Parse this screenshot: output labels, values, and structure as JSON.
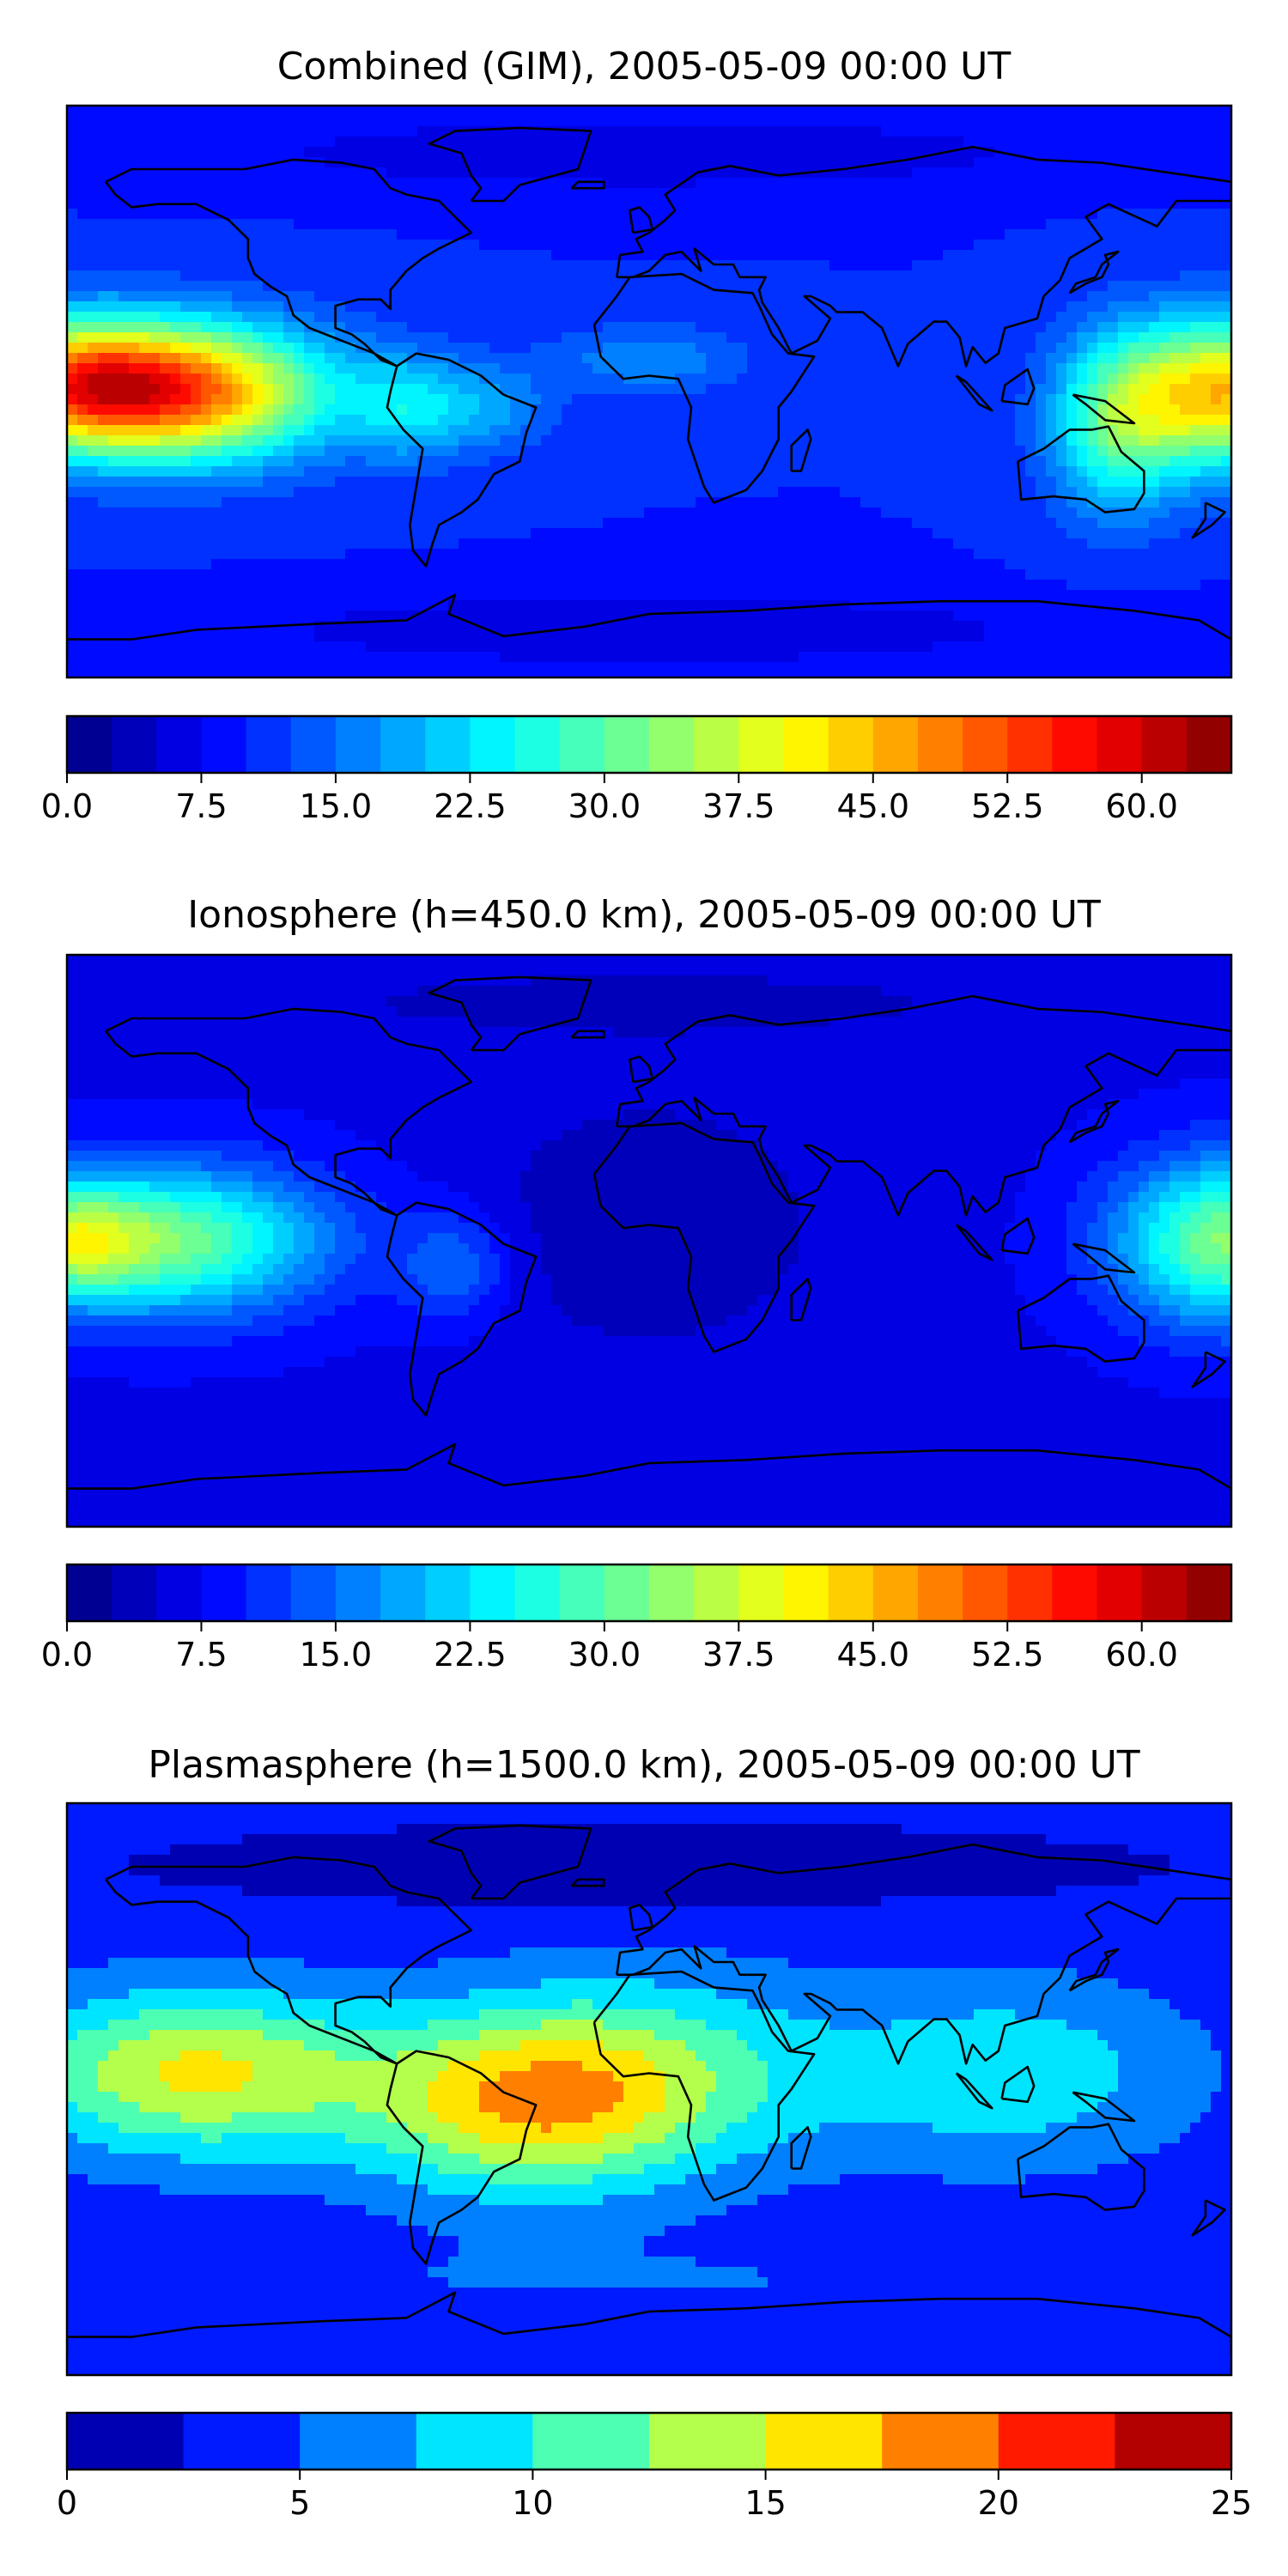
{
  "panels": [
    {
      "title": "Combined (GIM), 2005-05-09 00:00 UT",
      "colorbar": {
        "min": 0.0,
        "max": 65.0,
        "step": 2.5,
        "colormap": "jet",
        "ticks": [
          "0.0",
          "7.5",
          "15.0",
          "22.5",
          "30.0",
          "37.5",
          "45.0",
          "52.5",
          "60.0"
        ],
        "tick_values": [
          0,
          7.5,
          15,
          22.5,
          30,
          37.5,
          45,
          52.5,
          60
        ]
      },
      "field": {
        "base": 10,
        "blobs": [
          {
            "lon": -145,
            "lat": 0,
            "amp": 40,
            "slon": 32,
            "slat": 15
          },
          {
            "lon": -180,
            "lat": 3,
            "amp": 25,
            "slon": 22,
            "slat": 14
          },
          {
            "lon": 180,
            "lat": 0,
            "amp": 34,
            "slon": 22,
            "slat": 16
          },
          {
            "lon": 145,
            "lat": -10,
            "amp": 18,
            "slon": 15,
            "slat": 20
          },
          {
            "lon": -75,
            "lat": -5,
            "amp": 10,
            "slon": 12,
            "slat": 12
          },
          {
            "lon": -50,
            "lat": -5,
            "amp": 8,
            "slon": 14,
            "slat": 10
          },
          {
            "lon": 0,
            "lat": 10,
            "amp": 7,
            "slon": 22,
            "slat": 8
          },
          {
            "lon": 0,
            "lat": 75,
            "amp": -5,
            "slon": 90,
            "slat": 8
          },
          {
            "lon": 0,
            "lat": -75,
            "amp": -5,
            "slon": 90,
            "slat": 8
          }
        ]
      }
    },
    {
      "title": "Ionosphere  (h=450.0 km), 2005-05-09 00:00 UT",
      "colorbar": {
        "min": 0.0,
        "max": 65.0,
        "step": 2.5,
        "colormap": "jet",
        "ticks": [
          "0.0",
          "7.5",
          "15.0",
          "22.5",
          "30.0",
          "37.5",
          "45.0",
          "52.5",
          "60.0"
        ],
        "tick_values": [
          0,
          7.5,
          15,
          22.5,
          30,
          37.5,
          45,
          52.5,
          60
        ]
      },
      "field": {
        "base": 7,
        "blobs": [
          {
            "lon": -150,
            "lat": 0,
            "amp": 25,
            "slon": 35,
            "slat": 16
          },
          {
            "lon": -180,
            "lat": 0,
            "amp": 16,
            "slon": 15,
            "slat": 12
          },
          {
            "lon": 180,
            "lat": 0,
            "amp": 26,
            "slon": 25,
            "slat": 18
          },
          {
            "lon": -60,
            "lat": -8,
            "amp": 8,
            "slon": 12,
            "slat": 12
          },
          {
            "lon": 0,
            "lat": 5,
            "amp": -4,
            "slon": 40,
            "slat": 30
          },
          {
            "lon": 0,
            "lat": 75,
            "amp": -3,
            "slon": 90,
            "slat": 8
          }
        ]
      }
    },
    {
      "title": "Plasmasphere (h=1500.0 km), 2005-05-09 00:00 UT",
      "colorbar": {
        "min": 0,
        "max": 25,
        "step": 2.5,
        "colormap": "jet",
        "ticks": [
          "0",
          "5",
          "10",
          "15",
          "20",
          "25"
        ],
        "tick_values": [
          0,
          5,
          10,
          15,
          20,
          25
        ]
      },
      "field": {
        "base": 3.5,
        "blobs": [
          {
            "lon": -140,
            "lat": 5,
            "amp": 12,
            "slon": 40,
            "slat": 18
          },
          {
            "lon": -40,
            "lat": -5,
            "amp": 11,
            "slon": 35,
            "slat": 20
          },
          {
            "lon": 0,
            "lat": 5,
            "amp": 7,
            "slon": 40,
            "slat": 22
          },
          {
            "lon": 110,
            "lat": 5,
            "amp": 6,
            "slon": 40,
            "slat": 20
          },
          {
            "lon": 0,
            "lat": 70,
            "amp": -2.5,
            "slon": 120,
            "slat": 10
          },
          {
            "lon": 0,
            "lat": -60,
            "amp": 1.5,
            "slon": 120,
            "slat": 8
          }
        ]
      }
    }
  ]
}
